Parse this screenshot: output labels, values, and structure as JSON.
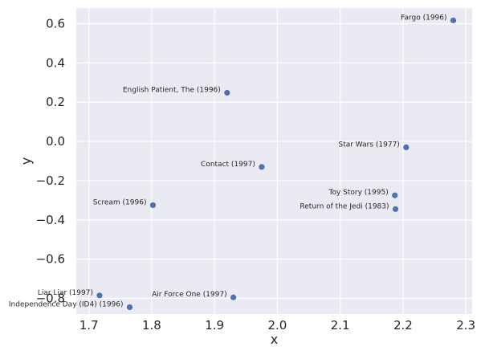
{
  "chart_data": {
    "type": "scatter",
    "xlabel": "x",
    "ylabel": "y",
    "xlim": [
      1.68,
      2.31
    ],
    "ylim": [
      -0.88,
      0.68
    ],
    "xticks": [
      "1.7",
      "1.8",
      "1.9",
      "2.0",
      "2.1",
      "2.2",
      "2.3"
    ],
    "yticks": [
      "0.6",
      "0.4",
      "0.2",
      "0.0",
      "−0.2",
      "−0.4",
      "−0.6",
      "−0.8"
    ],
    "grid": true,
    "colors": {
      "background": "#eaeaf2",
      "grid": "#ffffff",
      "point": "#4c72b0"
    },
    "points": [
      {
        "label": "Fargo (1996)",
        "x": 2.28,
        "y": 0.617
      },
      {
        "label": "English Patient, The (1996)",
        "x": 1.92,
        "y": 0.248
      },
      {
        "label": "Star Wars (1977)",
        "x": 2.205,
        "y": -0.03
      },
      {
        "label": "Contact (1997)",
        "x": 1.975,
        "y": -0.13
      },
      {
        "label": "Toy Story (1995)",
        "x": 2.187,
        "y": -0.275
      },
      {
        "label": "Scream (1996)",
        "x": 1.802,
        "y": -0.325
      },
      {
        "label": "Return of the Jedi (1983)",
        "x": 2.188,
        "y": -0.345
      },
      {
        "label": "Liar Liar (1997)",
        "x": 1.717,
        "y": -0.785
      },
      {
        "label": "Air Force One (1997)",
        "x": 1.93,
        "y": -0.795
      },
      {
        "label": "Independence Day (ID4) (1996)",
        "x": 1.765,
        "y": -0.845
      }
    ]
  }
}
